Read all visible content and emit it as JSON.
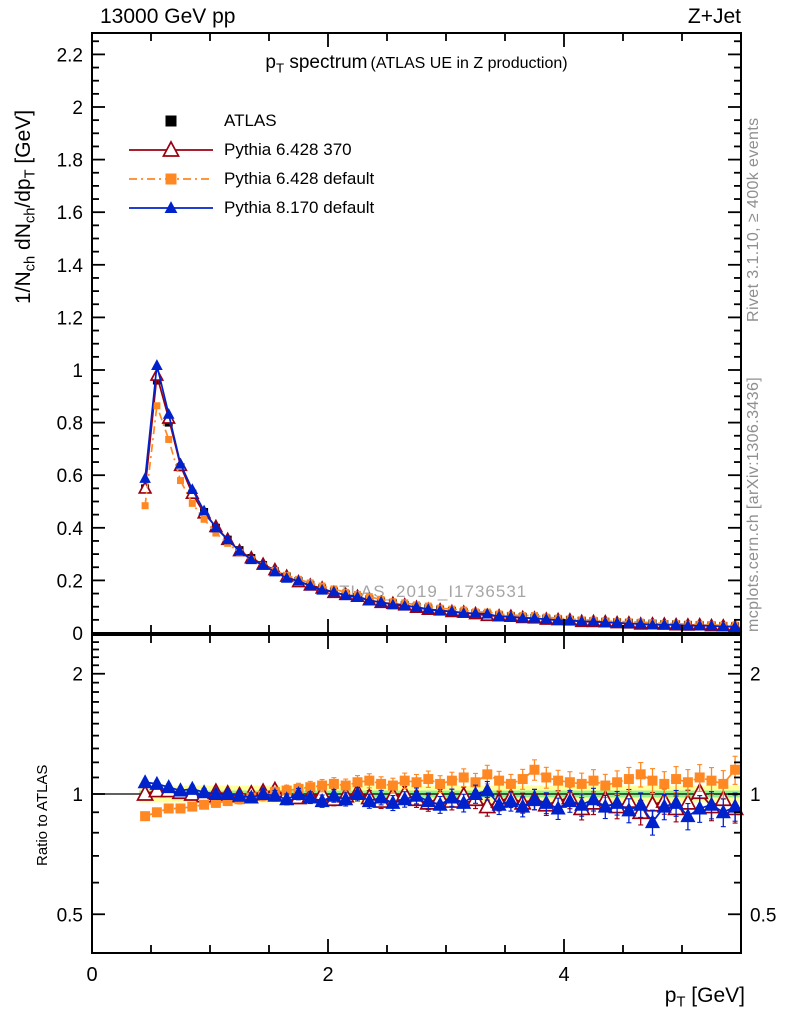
{
  "header": {
    "left": "13000 GeV pp",
    "right": "Z+Jet"
  },
  "title": {
    "p": "p",
    "sub": "T",
    "main": " spectrum",
    "paren": "(ATLAS UE in Z production)"
  },
  "watermark": "ATLAS_2019_I1736531",
  "side_notes": {
    "top": "Rivet 3.1.10, ≥ 400k events",
    "bottom": "mcplots.cern.ch [arXiv:1306.3436]"
  },
  "axes": {
    "x_title": {
      "p": "p",
      "sub": "T",
      "unit": " [GeV]"
    },
    "y_title": {
      "pre": "1/N",
      "sub1": "ch",
      "mid": " dN",
      "sub2": "ch",
      "slash": "/dp",
      "sub3": "T",
      "unit": " [GeV]"
    },
    "ratio_title": "Ratio to ATLAS",
    "x_major_ticks": [
      {
        "v": 0,
        "label": "0"
      },
      {
        "v": 2,
        "label": "2"
      },
      {
        "v": 4,
        "label": "4"
      }
    ],
    "x_minor_step": 0.5,
    "y_major_ticks": [
      {
        "v": 0,
        "label": "0"
      },
      {
        "v": 0.2,
        "label": "0.2"
      },
      {
        "v": 0.4,
        "label": "0.4"
      },
      {
        "v": 0.6,
        "label": "0.6"
      },
      {
        "v": 0.8,
        "label": "0.8"
      },
      {
        "v": 1,
        "label": "1"
      },
      {
        "v": 1.2,
        "label": "1.2"
      },
      {
        "v": 1.4,
        "label": "1.4"
      },
      {
        "v": 1.6,
        "label": "1.6"
      },
      {
        "v": 1.8,
        "label": "1.8"
      },
      {
        "v": 2,
        "label": "2"
      },
      {
        "v": 2.2,
        "label": "2.2"
      }
    ],
    "y_minor_step": 0.05,
    "ratio_major_ticks": [
      {
        "v": 0.5,
        "label": "0.5"
      },
      {
        "v": 1,
        "label": "1"
      },
      {
        "v": 2,
        "label": "2"
      }
    ],
    "ratio_minor_ticks": [
      0.4,
      0.6,
      0.7,
      0.8,
      0.9,
      1.1,
      1.2,
      1.3,
      1.4,
      1.5,
      1.6,
      1.7,
      1.8,
      1.9,
      2.1,
      2.2,
      2.3,
      2.4
    ]
  },
  "legend": [
    {
      "label": "ATLAS",
      "color": "#000000",
      "marker": "square-filled",
      "line": "none"
    },
    {
      "label": "Pythia 6.428 370",
      "color": "#990011",
      "marker": "triangle-open",
      "line": "solid"
    },
    {
      "label": "Pythia 6.428 default",
      "color": "#ff8822",
      "marker": "square-filled",
      "line": "dashdot"
    },
    {
      "label": "Pythia 8.170 default",
      "color": "#0022cc",
      "marker": "triangle-filled",
      "line": "solid"
    }
  ],
  "band": {
    "yellow": 0.05,
    "green": 0.02,
    "yellow_color": "#ffff9c",
    "green_color": "#8ef28e"
  },
  "ratio_error": {
    "base": 0.01,
    "slope": 0.013
  },
  "chart_data": {
    "type": "line",
    "title": "p_T spectrum (ATLAS UE in Z production)",
    "xlabel": "p_T [GeV]",
    "xlim": [
      0,
      5.5
    ],
    "x": [
      0.45,
      0.55,
      0.65,
      0.75,
      0.85,
      0.95,
      1.05,
      1.15,
      1.25,
      1.35,
      1.45,
      1.55,
      1.65,
      1.75,
      1.85,
      1.95,
      2.05,
      2.15,
      2.25,
      2.35,
      2.45,
      2.55,
      2.65,
      2.75,
      2.85,
      2.95,
      3.05,
      3.15,
      3.25,
      3.35,
      3.45,
      3.55,
      3.65,
      3.75,
      3.85,
      3.95,
      4.05,
      4.15,
      4.25,
      4.35,
      4.45,
      4.55,
      4.65,
      4.75,
      4.85,
      4.95,
      5.05,
      5.15,
      5.25,
      5.35,
      5.45
    ],
    "panels": [
      {
        "name": "spectrum",
        "ylabel": "1/N_ch dN_ch/dp_T [GeV]",
        "ylim": [
          0,
          2.28
        ],
        "grid": false,
        "series": [
          {
            "name": "ATLAS",
            "color": "#000000",
            "marker": "square-filled",
            "line": "none",
            "values": [
              0.55,
              0.96,
              0.8,
              0.63,
              0.53,
              0.46,
              0.4,
              0.355,
              0.315,
              0.285,
              0.258,
              0.235,
              0.215,
              0.198,
              0.183,
              0.17,
              0.158,
              0.147,
              0.137,
              0.128,
              0.12,
              0.113,
              0.106,
              0.1,
              0.094,
              0.089,
              0.084,
              0.079,
              0.075,
              0.071,
              0.067,
              0.064,
              0.061,
              0.058,
              0.055,
              0.052,
              0.05,
              0.047,
              0.045,
              0.043,
              0.041,
              0.039,
              0.037,
              0.036,
              0.034,
              0.033,
              0.031,
              0.03,
              0.029,
              0.027,
              0.026
            ]
          }
        ],
        "note": "MC curves in this panel = ATLAS values multiplied by the ratio-panel values"
      },
      {
        "name": "ratio",
        "ylabel": "Ratio to ATLAS",
        "yscale": "log",
        "ylim": [
          0.4,
          2.5
        ],
        "series": [
          {
            "name": "Pythia 6.428 370",
            "color": "#990011",
            "marker": "triangle-open",
            "line": "solid",
            "values": [
              1.0,
              1.02,
              1.02,
              1.01,
              1.0,
              0.99,
              1.01,
              1.0,
              0.99,
              1.0,
              1.01,
              1.02,
              1.0,
              0.98,
              0.99,
              1.0,
              0.97,
              0.99,
              1.01,
              0.98,
              0.96,
              0.99,
              1.0,
              0.97,
              0.95,
              0.98,
              0.96,
              0.99,
              0.97,
              0.93,
              0.96,
              0.98,
              0.95,
              0.97,
              0.94,
              0.96,
              0.98,
              0.92,
              0.95,
              0.97,
              0.93,
              0.96,
              0.9,
              0.94,
              0.96,
              0.92,
              0.95,
              1.01,
              0.93,
              0.97,
              0.92
            ]
          },
          {
            "name": "Pythia 6.428 default",
            "color": "#ff8822",
            "marker": "square-filled",
            "line": "dashdot",
            "values": [
              0.88,
              0.9,
              0.92,
              0.92,
              0.93,
              0.94,
              0.95,
              0.96,
              0.97,
              0.98,
              0.99,
              1.01,
              1.02,
              1.03,
              1.04,
              1.05,
              1.06,
              1.05,
              1.07,
              1.08,
              1.06,
              1.05,
              1.08,
              1.07,
              1.09,
              1.06,
              1.08,
              1.1,
              1.07,
              1.12,
              1.08,
              1.06,
              1.09,
              1.15,
              1.1,
              1.08,
              1.07,
              1.06,
              1.08,
              1.05,
              1.07,
              1.09,
              1.12,
              1.08,
              1.06,
              1.09,
              1.07,
              1.1,
              1.08,
              1.06,
              1.15
            ]
          },
          {
            "name": "Pythia 8.170 default",
            "color": "#0022cc",
            "marker": "triangle-filled",
            "line": "solid",
            "values": [
              1.07,
              1.06,
              1.04,
              1.02,
              1.03,
              1.01,
              1.0,
              1.0,
              0.99,
              0.98,
              1.0,
              0.99,
              0.97,
              1.0,
              0.98,
              0.96,
              0.99,
              0.97,
              1.0,
              0.96,
              0.98,
              0.95,
              0.97,
              0.99,
              0.96,
              0.94,
              0.98,
              0.95,
              1.0,
              1.02,
              0.94,
              0.96,
              0.93,
              0.97,
              0.95,
              0.92,
              0.96,
              0.94,
              0.97,
              0.93,
              0.95,
              0.91,
              0.94,
              0.85,
              0.93,
              0.95,
              0.88,
              0.92,
              0.94,
              0.9,
              0.93
            ]
          }
        ]
      }
    ]
  }
}
